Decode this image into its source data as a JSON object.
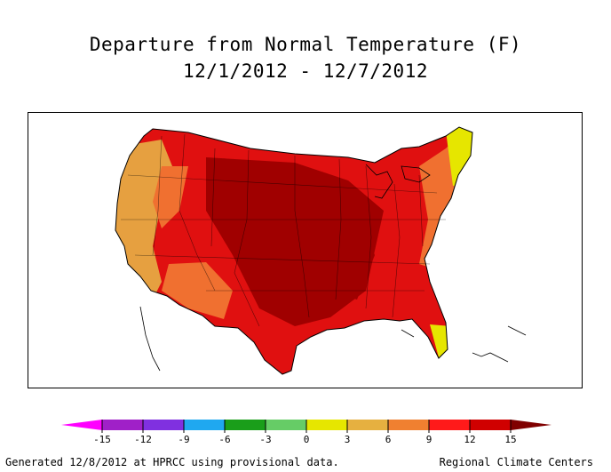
{
  "title": "Departure from Normal Temperature (F)",
  "subtitle": "12/1/2012 - 12/7/2012",
  "legend": {
    "ticks": [
      "-15",
      "-12",
      "-9",
      "-6",
      "-3",
      "0",
      "3",
      "6",
      "9",
      "12",
      "15"
    ],
    "colors": [
      "#ff00ff",
      "#a020c8",
      "#8030e0",
      "#1fa8f0",
      "#1a9e1a",
      "#66cc66",
      "#e6e600",
      "#e6b040",
      "#f08030",
      "#ff1a1a",
      "#d00000",
      "#800000"
    ]
  },
  "map_colors": {
    "dark_red": "#a00000",
    "red": "#e01010",
    "bright_red": "#ff1a1a",
    "orange": "#f07030",
    "tan": "#e6a040",
    "yellow": "#e6e600"
  },
  "footer_left": "Generated 12/8/2012 at HPRCC using provisional data.",
  "footer_right": "Regional Climate Centers"
}
